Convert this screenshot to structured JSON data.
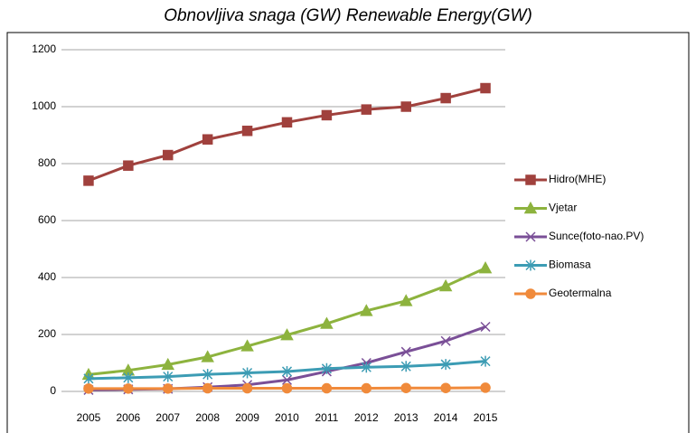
{
  "chart_data": {
    "type": "line",
    "title": "Obnovljiva snaga (GW) Renewable Energy(GW)",
    "categories": [
      "2005",
      "2006",
      "2007",
      "2008",
      "2009",
      "2010",
      "2011",
      "2012",
      "2013",
      "2014",
      "2015"
    ],
    "series": [
      {
        "name": "Hidro(MHE)",
        "color": "#a0413d",
        "marker": "square",
        "values": [
          740,
          793,
          830,
          885,
          915,
          945,
          970,
          990,
          1000,
          1030,
          1065
        ]
      },
      {
        "name": "Vjetar",
        "color": "#8db33e",
        "marker": "triangle",
        "values": [
          59,
          74,
          94,
          121,
          159,
          198,
          238,
          283,
          318,
          370,
          433
        ]
      },
      {
        "name": "Sunce(foto-nao.PV)",
        "color": "#7a4f97",
        "marker": "x",
        "values": [
          5,
          7,
          9,
          15,
          23,
          40,
          70,
          100,
          139,
          177,
          227
        ]
      },
      {
        "name": "Biomasa",
        "color": "#3c9cb4",
        "marker": "asterisk",
        "values": [
          45,
          48,
          52,
          60,
          65,
          70,
          80,
          85,
          88,
          95,
          106
        ]
      },
      {
        "name": "Geotermalna",
        "color": "#f08a3b",
        "marker": "circle",
        "values": [
          10,
          10,
          10,
          11,
          11,
          11,
          11,
          11,
          12,
          12,
          13
        ]
      }
    ],
    "ylim": [
      0,
      1200
    ],
    "yticks": [
      0,
      200,
      400,
      600,
      800,
      1000,
      1200
    ],
    "grid": true,
    "legend": "right"
  }
}
